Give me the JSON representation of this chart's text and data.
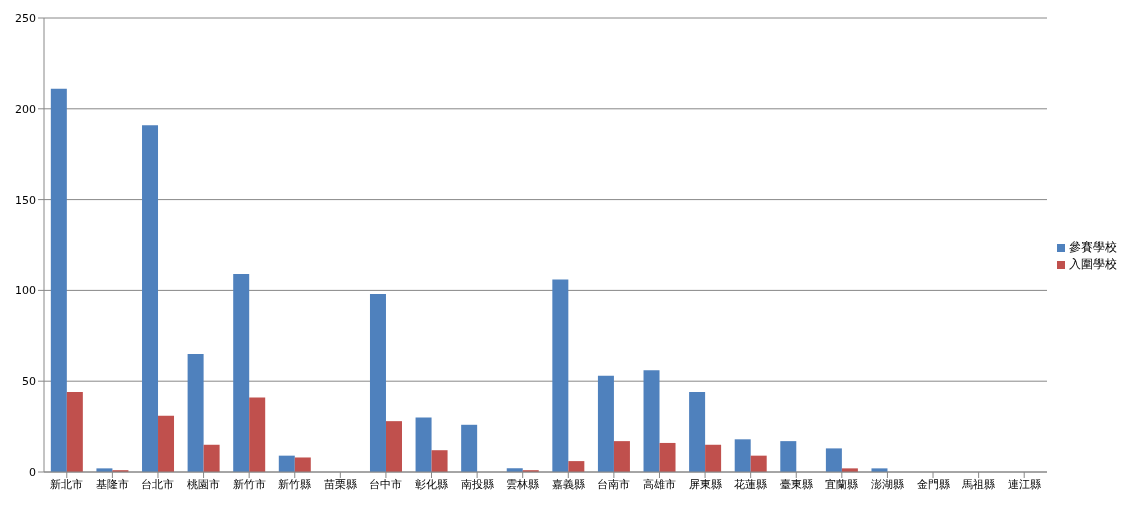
{
  "chart_data": {
    "type": "bar",
    "categories": [
      "新北市",
      "基隆市",
      "台北市",
      "桃園市",
      "新竹市",
      "新竹縣",
      "苗栗縣",
      "台中市",
      "彰化縣",
      "南投縣",
      "雲林縣",
      "嘉義縣",
      "台南市",
      "高雄市",
      "屏東縣",
      "花蓮縣",
      "臺東縣",
      "宜蘭縣",
      "澎湖縣",
      "金門縣",
      "馬祖縣",
      "連江縣"
    ],
    "series": [
      {
        "name": "參賽學校",
        "color": "#4f81bd",
        "values": [
          211,
          2,
          191,
          65,
          109,
          9,
          0,
          98,
          30,
          26,
          2,
          106,
          53,
          56,
          44,
          18,
          17,
          13,
          2,
          0,
          0,
          0
        ]
      },
      {
        "name": "入圍學校",
        "color": "#c0504d",
        "values": [
          44,
          1,
          31,
          15,
          41,
          8,
          0,
          28,
          12,
          0,
          1,
          6,
          17,
          16,
          15,
          9,
          0,
          2,
          0,
          0,
          0,
          0
        ]
      }
    ],
    "ylim": [
      0,
      250
    ],
    "yticks": [
      0,
      50,
      100,
      150,
      200,
      250
    ],
    "grid": "y",
    "legend": "right"
  }
}
